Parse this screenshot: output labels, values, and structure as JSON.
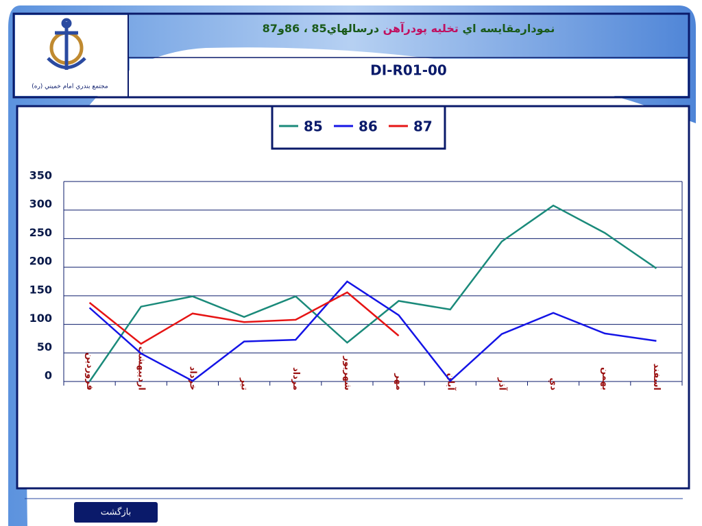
{
  "header": {
    "title_parts": [
      "نمودارمقايسه اي",
      "تخليه پودرآهن",
      "درسالهاي85 ، 86و87"
    ],
    "code": "DI-R01-00",
    "logo_caption": "مجتمع بندري امام خميني (ره)"
  },
  "footer": {
    "button": "بازگشت"
  },
  "chart_data": {
    "type": "line",
    "categories": [
      "فروردين",
      "ارديبهشت",
      "خرداد",
      "تير",
      "مرداد",
      "شهريور",
      "مهر",
      "آبان",
      "آذر",
      "دي",
      "بهمن",
      "اسفند"
    ],
    "series": [
      {
        "name": "85",
        "color": "#1a8a7a",
        "values": [
          0,
          131,
          149,
          113,
          149,
          68,
          141,
          126,
          245,
          308,
          260,
          198
        ]
      },
      {
        "name": "86",
        "color": "#1414e6",
        "values": [
          129,
          49,
          1,
          70,
          73,
          175,
          116,
          1,
          83,
          120,
          84,
          71
        ]
      },
      {
        "name": "87",
        "color": "#e61414",
        "values": [
          138,
          66,
          119,
          104,
          108,
          156,
          80,
          null,
          null,
          null,
          null,
          null
        ]
      }
    ],
    "ylim": [
      0,
      350
    ],
    "yticks": [
      0,
      50,
      100,
      150,
      200,
      250,
      300,
      350
    ],
    "grid": true,
    "legend": "top"
  }
}
